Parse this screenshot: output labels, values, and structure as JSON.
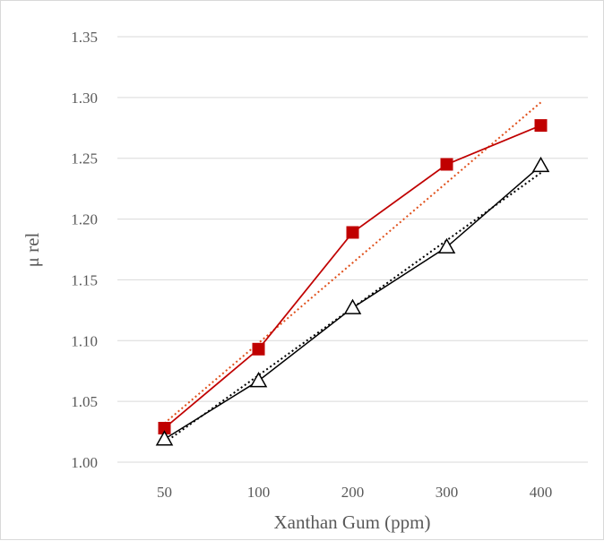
{
  "chart_data": {
    "type": "line",
    "title": "",
    "xlabel": "Xanthan Gum (ppm)",
    "ylabel": "μ rel",
    "categories": [
      "50",
      "100",
      "200",
      "300",
      "400"
    ],
    "ylim": [
      1.0,
      1.35
    ],
    "yticks": [
      "1.00",
      "1.05",
      "1.10",
      "1.15",
      "1.20",
      "1.25",
      "1.30",
      "1.35"
    ],
    "grid": true,
    "legend": "none",
    "series": [
      {
        "marker": "square",
        "color": "#c00000",
        "values": [
          1.028,
          1.093,
          1.189,
          1.245,
          1.277
        ],
        "trendline": {
          "style": "dotted",
          "color": "#e0501b",
          "start": 1.032,
          "end": 1.296
        }
      },
      {
        "marker": "triangle-open",
        "color": "#000000",
        "values": [
          1.019,
          1.067,
          1.127,
          1.177,
          1.244
        ],
        "trendline": {
          "style": "dotted",
          "color": "#000000",
          "start": 1.016,
          "end": 1.238
        }
      }
    ]
  }
}
